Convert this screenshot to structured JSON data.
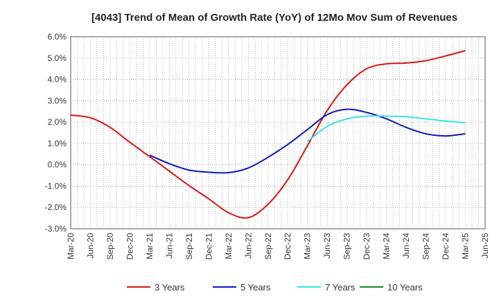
{
  "chart_data": {
    "type": "line",
    "title": "[4043]  Trend of Mean of Growth Rate (YoY) of 12Mo Mov Sum of Revenues",
    "xlabel": "",
    "ylabel": "",
    "ylim": [
      -3.0,
      6.0
    ],
    "y_ticks": [
      -3.0,
      -2.0,
      -1.0,
      0.0,
      1.0,
      2.0,
      3.0,
      4.0,
      5.0,
      6.0
    ],
    "y_tick_labels": [
      "-3.0%",
      "-2.0%",
      "-1.0%",
      "0.0%",
      "1.0%",
      "2.0%",
      "3.0%",
      "4.0%",
      "5.0%",
      "6.0%"
    ],
    "x_tick_labels": [
      "Mar-20",
      "Jun-20",
      "Sep-20",
      "Dec-20",
      "Mar-21",
      "Jun-21",
      "Sep-21",
      "Dec-21",
      "Mar-22",
      "Jun-22",
      "Sep-22",
      "Dec-22",
      "Mar-23",
      "Jun-23",
      "Sep-23",
      "Dec-23",
      "Mar-24",
      "Jun-24",
      "Sep-24",
      "Dec-24",
      "Mar-25",
      "Jun-25"
    ],
    "grid": true,
    "legend_position": "bottom",
    "series": [
      {
        "name": "3 Years",
        "color": "#dd1111",
        "x": [
          0,
          1,
          2,
          3,
          4,
          5,
          6,
          7,
          8,
          9,
          10,
          11,
          12,
          13,
          14,
          15,
          16,
          17,
          18,
          19,
          20
        ],
        "values": [
          2.33,
          2.2,
          1.75,
          1.05,
          0.38,
          -0.3,
          -0.98,
          -1.6,
          -2.25,
          -2.48,
          -1.85,
          -0.7,
          0.9,
          2.55,
          3.75,
          4.5,
          4.73,
          4.77,
          4.88,
          5.1,
          5.35
        ]
      },
      {
        "name": "5 Years",
        "color": "#0a14c8",
        "x": [
          4,
          5,
          6,
          7,
          8,
          9,
          10,
          11,
          12,
          13,
          14,
          15,
          16,
          17,
          18,
          19,
          20
        ],
        "values": [
          0.45,
          0.05,
          -0.25,
          -0.35,
          -0.37,
          -0.15,
          0.35,
          0.95,
          1.65,
          2.35,
          2.6,
          2.45,
          2.15,
          1.75,
          1.45,
          1.35,
          1.45
        ]
      },
      {
        "name": "7 Years",
        "color": "#33e6e6",
        "x": [
          12,
          13,
          14,
          15,
          16,
          17,
          18,
          19,
          20
        ],
        "values": [
          1.1,
          1.8,
          2.15,
          2.28,
          2.28,
          2.25,
          2.15,
          2.05,
          1.97
        ]
      },
      {
        "name": "10 Years",
        "color": "#1a8a1a",
        "x": [],
        "values": []
      }
    ]
  }
}
